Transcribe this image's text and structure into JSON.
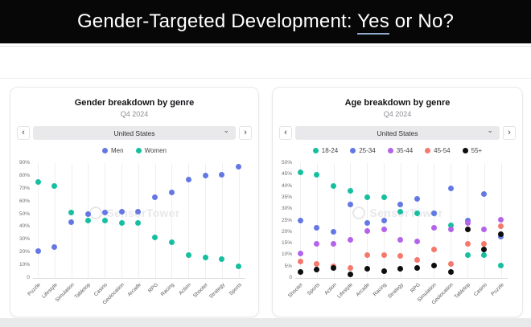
{
  "slide": {
    "title_prefix": "Gender-Targeted Development: ",
    "title_emphasis": "Yes",
    "title_suffix": " or No?"
  },
  "controls": {
    "prev_icon": "‹",
    "next_icon": "›",
    "dropdown_icon": "⌄"
  },
  "panels": [
    {
      "region": "United States"
    },
    {
      "region": "United States"
    }
  ],
  "watermark": {
    "text": "SensorTower"
  },
  "chart_data": [
    {
      "type": "scatter",
      "title": "Gender breakdown by genre",
      "subtitle": "Q4 2024",
      "region": "United States",
      "categories": [
        "Puzzle",
        "Lifestyle",
        "Simulation",
        "Tabletop",
        "Casino",
        "Geolocation",
        "Arcade",
        "RPG",
        "Racing",
        "Action",
        "Shooter",
        "Strategy",
        "Sports"
      ],
      "series": [
        {
          "name": "Men",
          "color": "#6478e4",
          "values": [
            21,
            24,
            44,
            50,
            51,
            52,
            52,
            63,
            67,
            77,
            80,
            81,
            87
          ]
        },
        {
          "name": "Women",
          "color": "#16bf9f",
          "values": [
            75,
            72,
            51,
            45,
            45,
            43,
            43,
            32,
            28,
            18,
            16,
            15,
            9
          ]
        }
      ],
      "ylim": [
        0,
        90
      ],
      "yticks": [
        "90%",
        "80%",
        "70%",
        "60%",
        "50%",
        "40%",
        "30%",
        "20%",
        "10%",
        "0"
      ],
      "xlabel": "",
      "ylabel": "",
      "grid": "vertical-category-lines",
      "legend_position": "top"
    },
    {
      "type": "scatter",
      "title": "Age breakdown by genre",
      "subtitle": "Q4 2024",
      "region": "United States",
      "categories": [
        "Shooter",
        "Sports",
        "Action",
        "Lifestyle",
        "Arcade",
        "Racing",
        "Strategy",
        "RPG",
        "Simulation",
        "Geolocation",
        "Tabletop",
        "Casino",
        "Puzzle"
      ],
      "series": [
        {
          "name": "18-24",
          "color": "#16bf9f",
          "values": [
            46,
            45,
            40,
            38,
            35,
            35,
            29,
            28,
            28,
            23,
            10,
            10,
            5.5
          ]
        },
        {
          "name": "25-34",
          "color": "#6478e4",
          "values": [
            25,
            22,
            20,
            32,
            24,
            25,
            32,
            34.5,
            28,
            39,
            25,
            36.5,
            18
          ]
        },
        {
          "name": "35-44",
          "color": "#b464e8",
          "values": [
            10.5,
            15,
            15,
            16.5,
            20.5,
            21,
            16.5,
            16,
            22,
            21,
            24,
            21,
            25.5
          ]
        },
        {
          "name": "45-54",
          "color": "#f5786c",
          "values": [
            7,
            6,
            5,
            4.5,
            10,
            10,
            9.5,
            8,
            12.5,
            6,
            15,
            15,
            22.5
          ]
        },
        {
          "name": "55+",
          "color": "#0d0d0d",
          "values": [
            2.5,
            3.5,
            4.5,
            1.5,
            4,
            3,
            4,
            4.5,
            5.5,
            2.5,
            21,
            12.5,
            19
          ]
        }
      ],
      "ylim": [
        0,
        50
      ],
      "yticks": [
        "50%",
        "45%",
        "40%",
        "35%",
        "30%",
        "25%",
        "20%",
        "15%",
        "10%",
        "5%",
        "0"
      ],
      "xlabel": "",
      "ylabel": "",
      "grid": "vertical-category-lines",
      "legend_position": "top"
    }
  ]
}
